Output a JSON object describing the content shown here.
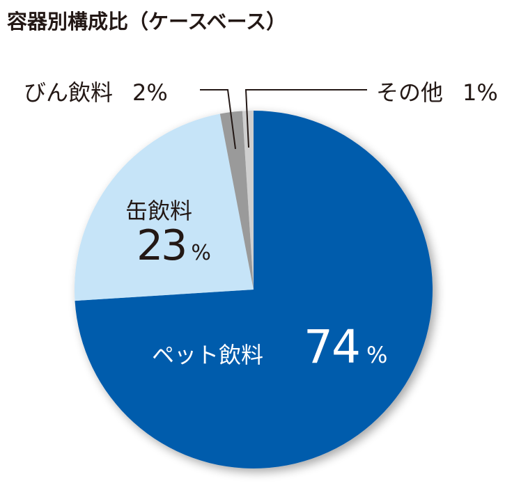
{
  "chart_data": {
    "type": "pie",
    "title": "容器別構成比（ケースベース）",
    "start": "top",
    "direction": "clockwise",
    "slices": [
      {
        "label": "ペット飲料",
        "value": 74,
        "display": "74",
        "unit": "%",
        "color": "#005bac"
      },
      {
        "label": "缶飲料",
        "value": 23,
        "display": "23",
        "unit": "%",
        "color": "#c6e4f8"
      },
      {
        "label": "びん飲料",
        "value": 2,
        "display": "2%",
        "color": "#9a9a9a"
      },
      {
        "label": "その他",
        "value": 1,
        "display": "1%",
        "color": "#cfcfcf"
      }
    ]
  }
}
